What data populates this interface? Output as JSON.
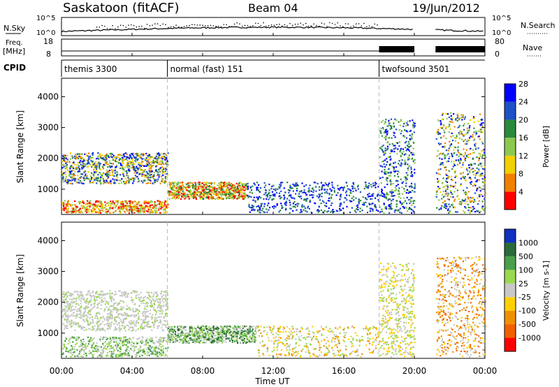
{
  "header": {
    "radar": "Saskatoon (fitACF)",
    "beam": "Beam 04",
    "date": "19/Jun/2012"
  },
  "panels": {
    "nsky": {
      "label": "N.Sky",
      "right_label": "N.Search",
      "tick_top": "10^5",
      "tick_bottom": "10^0"
    },
    "freq": {
      "label_line1": "Freq.",
      "label_line2": "[MHz]",
      "right_label": "Nave",
      "left_ticks": [
        "18",
        "8"
      ],
      "right_ticks": [
        "80",
        "0"
      ]
    },
    "cpid": {
      "label": "CPID"
    }
  },
  "chart_data": [
    {
      "type": "heatmap",
      "name": "power",
      "ylabel": "Slant Range [km]",
      "xlabel": "",
      "xlim": [
        0,
        24
      ],
      "ylim": [
        180,
        4600
      ],
      "x_ticks": [
        "00:00",
        "04:00",
        "08:00",
        "12:00",
        "16:00",
        "20:00",
        "00:00"
      ],
      "y_ticks": [
        "1000",
        "2000",
        "3000",
        "4000"
      ],
      "colorbar": {
        "label": "Power [dB]",
        "ticks": [
          "4",
          "8",
          "12",
          "16",
          "20",
          "24",
          "28"
        ],
        "colors": [
          "#0000ff",
          "#1e50c8",
          "#2a8a3c",
          "#8cc850",
          "#f0d000",
          "#f08000",
          "#ff0000"
        ]
      }
    },
    {
      "type": "heatmap",
      "name": "velocity",
      "ylabel": "Slant Range [km]",
      "xlabel": "Time UT",
      "xlim": [
        0,
        24
      ],
      "ylim": [
        180,
        4600
      ],
      "x_ticks": [
        "00:00",
        "04:00",
        "08:00",
        "12:00",
        "16:00",
        "20:00",
        "00:00"
      ],
      "y_ticks": [
        "1000",
        "2000",
        "3000",
        "4000"
      ],
      "colorbar": {
        "label": "Velocity [m s-1]",
        "ticks": [
          "1000",
          "500",
          "100",
          "25",
          "-25",
          "-100",
          "-500",
          "-1000"
        ],
        "colors": [
          "#1030c0",
          "#2a6a3a",
          "#4aa04a",
          "#9ad850",
          "#c8c8c8",
          "#ffd000",
          "#f09000",
          "#f06000",
          "#ff0000"
        ]
      }
    }
  ],
  "cpid_segments": [
    {
      "label": "themis 3300",
      "start_hour": 0
    },
    {
      "label": "normal (fast) 151",
      "start_hour": 6.0
    },
    {
      "label": "twofsound 3501",
      "start_hour": 18.0
    }
  ],
  "data_gap_hours": [
    20.0,
    21.2
  ]
}
